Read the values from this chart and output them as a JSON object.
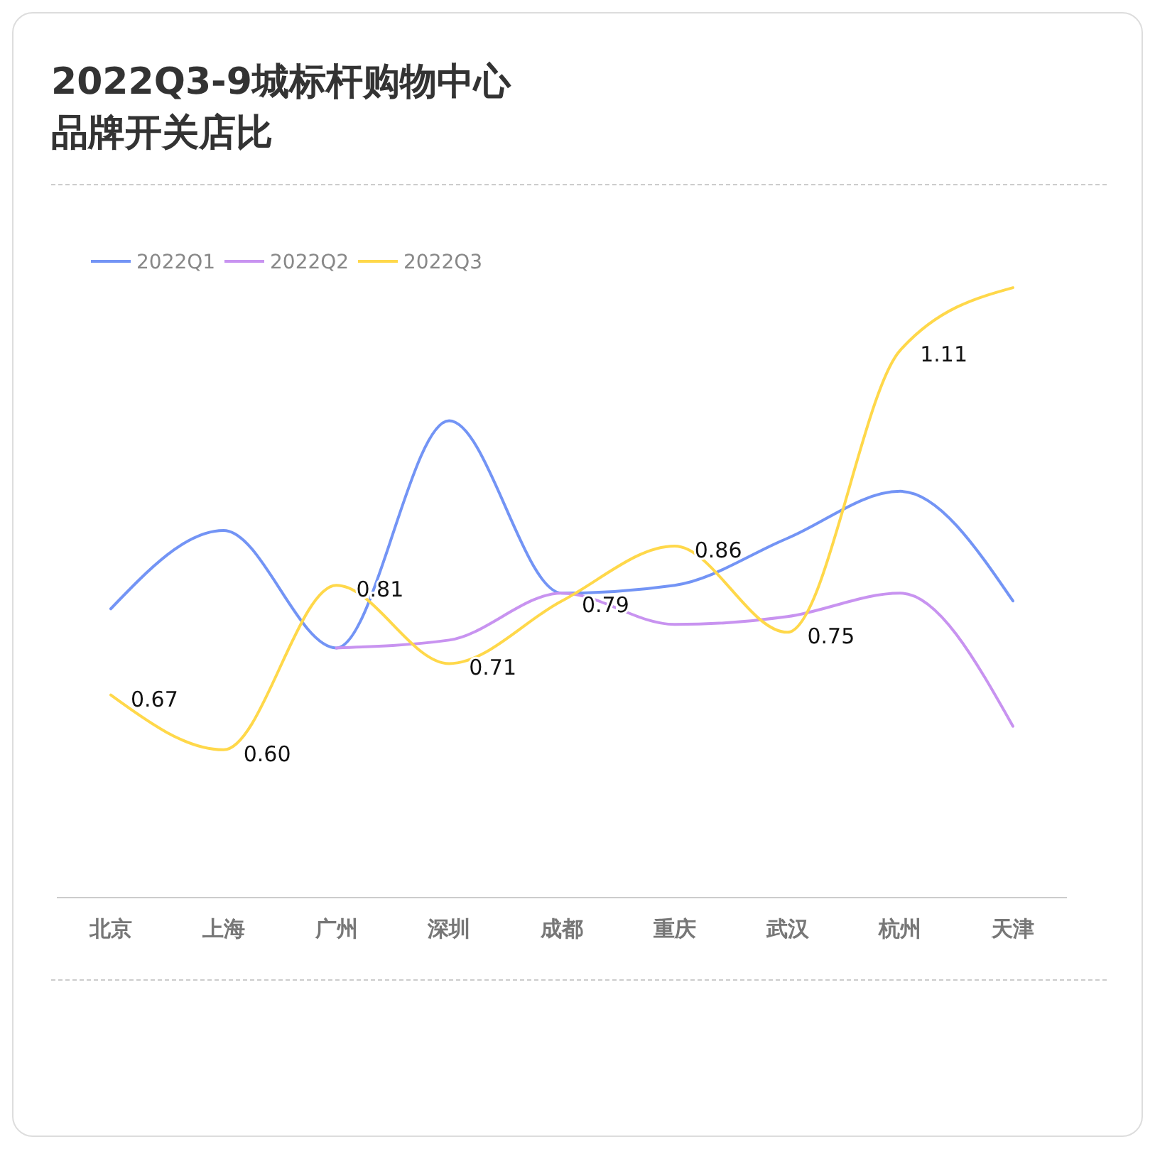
{
  "chart_data": {
    "type": "line",
    "title": "2022Q3-9城标杆购物中心品牌开关店比",
    "categories": [
      "北京",
      "上海",
      "广州",
      "深圳",
      "成都",
      "重庆",
      "武汉",
      "杭州",
      "天津"
    ],
    "tick_labels": "x",
    "legend": "top left",
    "marker": "none",
    "series": [
      {
        "name": "2022Q1",
        "color": "#7394f5",
        "values": [
          0.78,
          0.88,
          0.73,
          1.02,
          0.8,
          0.81,
          0.87,
          0.93,
          0.79
        ]
      },
      {
        "name": "2022Q2",
        "color": "#c893f0",
        "values": [
          null,
          null,
          0.73,
          0.74,
          0.8,
          0.76,
          0.77,
          0.8,
          0.63
        ]
      },
      {
        "name": "2022Q3",
        "color": "#ffd84a",
        "values": [
          0.67,
          0.6,
          0.81,
          0.71,
          0.79,
          0.86,
          0.75,
          1.11,
          1.19
        ],
        "value_labels": [
          "0.67",
          "0.60",
          "0.81",
          "0.71",
          "0.79",
          "0.86",
          "0.75",
          "1.11",
          null
        ]
      }
    ]
  }
}
